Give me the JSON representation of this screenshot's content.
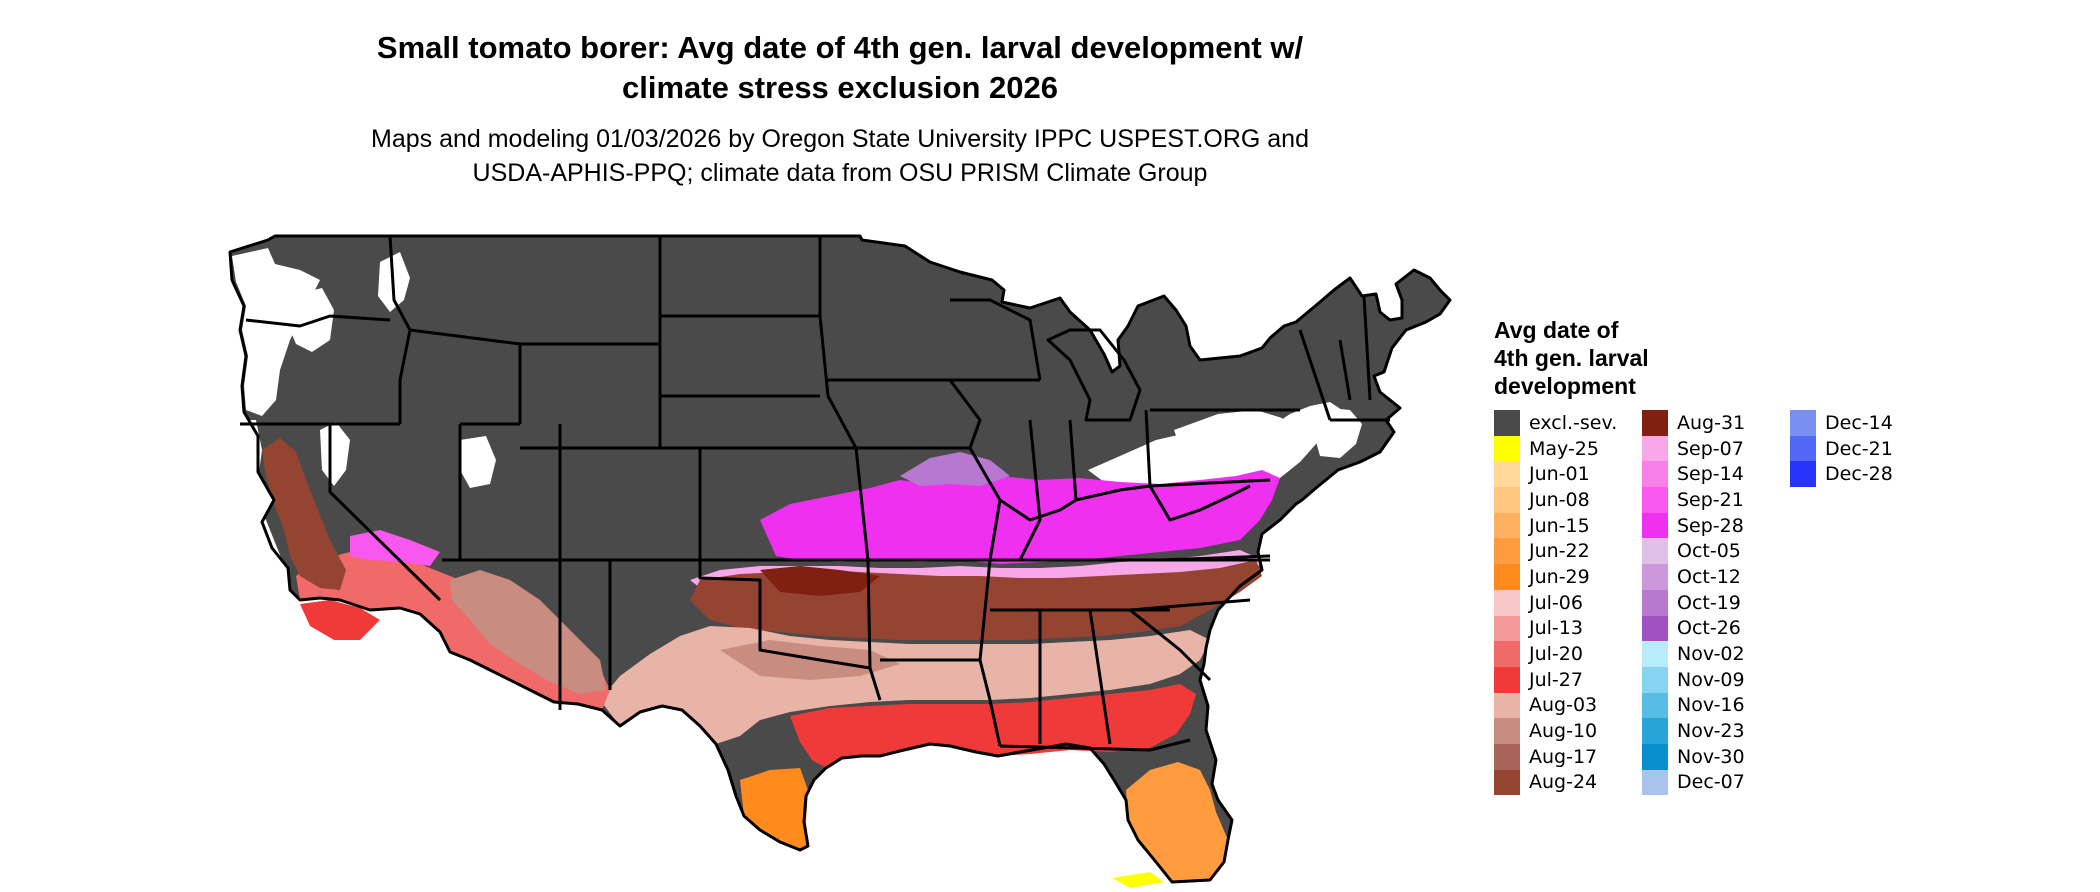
{
  "title_lines": [
    "Small tomato borer: Avg date of 4th gen. larval development w/",
    "climate stress exclusion 2026"
  ],
  "subtitle_lines": [
    "Maps and modeling 01/03/2026 by Oregon State University IPPC USPEST.ORG and",
    "USDA-APHIS-PPQ; climate data from OSU PRISM Climate Group"
  ],
  "legend": {
    "title_lines": [
      "Avg date of",
      "4th gen. larval",
      "development"
    ],
    "columns": [
      [
        {
          "label": "excl.-sev.",
          "color": "#4a4a4a"
        },
        {
          "label": "May-25",
          "color": "#ffff00"
        },
        {
          "label": "Jun-01",
          "color": "#ffd89a"
        },
        {
          "label": "Jun-08",
          "color": "#ffc680"
        },
        {
          "label": "Jun-15",
          "color": "#ffb060"
        },
        {
          "label": "Jun-22",
          "color": "#ff9c40"
        },
        {
          "label": "Jun-29",
          "color": "#ff8a1e"
        },
        {
          "label": "Jul-06",
          "color": "#f8c8c8"
        },
        {
          "label": "Jul-13",
          "color": "#f49a9a"
        },
        {
          "label": "Jul-20",
          "color": "#f06a6a"
        },
        {
          "label": "Jul-27",
          "color": "#f03a3a"
        },
        {
          "label": "Aug-03",
          "color": "#e8b4a8"
        },
        {
          "label": "Aug-10",
          "color": "#c88c80"
        },
        {
          "label": "Aug-17",
          "color": "#a86458"
        },
        {
          "label": "Aug-24",
          "color": "#964432"
        }
      ],
      [
        {
          "label": "Aug-31",
          "color": "#802010"
        },
        {
          "label": "Sep-07",
          "color": "#f8a8e8"
        },
        {
          "label": "Sep-14",
          "color": "#f880e8"
        },
        {
          "label": "Sep-21",
          "color": "#f858ee"
        },
        {
          "label": "Sep-28",
          "color": "#f030f0"
        },
        {
          "label": "Oct-05",
          "color": "#e0c0e8"
        },
        {
          "label": "Oct-12",
          "color": "#cc98dc"
        },
        {
          "label": "Oct-19",
          "color": "#b878d0"
        },
        {
          "label": "Oct-26",
          "color": "#a050c0"
        },
        {
          "label": "Nov-02",
          "color": "#b8ecfc"
        },
        {
          "label": "Nov-09",
          "color": "#88d4f0"
        },
        {
          "label": "Nov-16",
          "color": "#58bce4"
        },
        {
          "label": "Nov-23",
          "color": "#28a4d8"
        },
        {
          "label": "Nov-30",
          "color": "#0890cc"
        },
        {
          "label": "Dec-07",
          "color": "#a8c4ec"
        }
      ],
      [
        {
          "label": "Dec-14",
          "color": "#7890f0"
        },
        {
          "label": "Dec-21",
          "color": "#5068f4"
        },
        {
          "label": "Dec-28",
          "color": "#2834fc"
        }
      ]
    ]
  },
  "map_colors": {
    "excluded": "#4a4a4a",
    "unsuitable": "#ffffff",
    "border": "#000000"
  }
}
